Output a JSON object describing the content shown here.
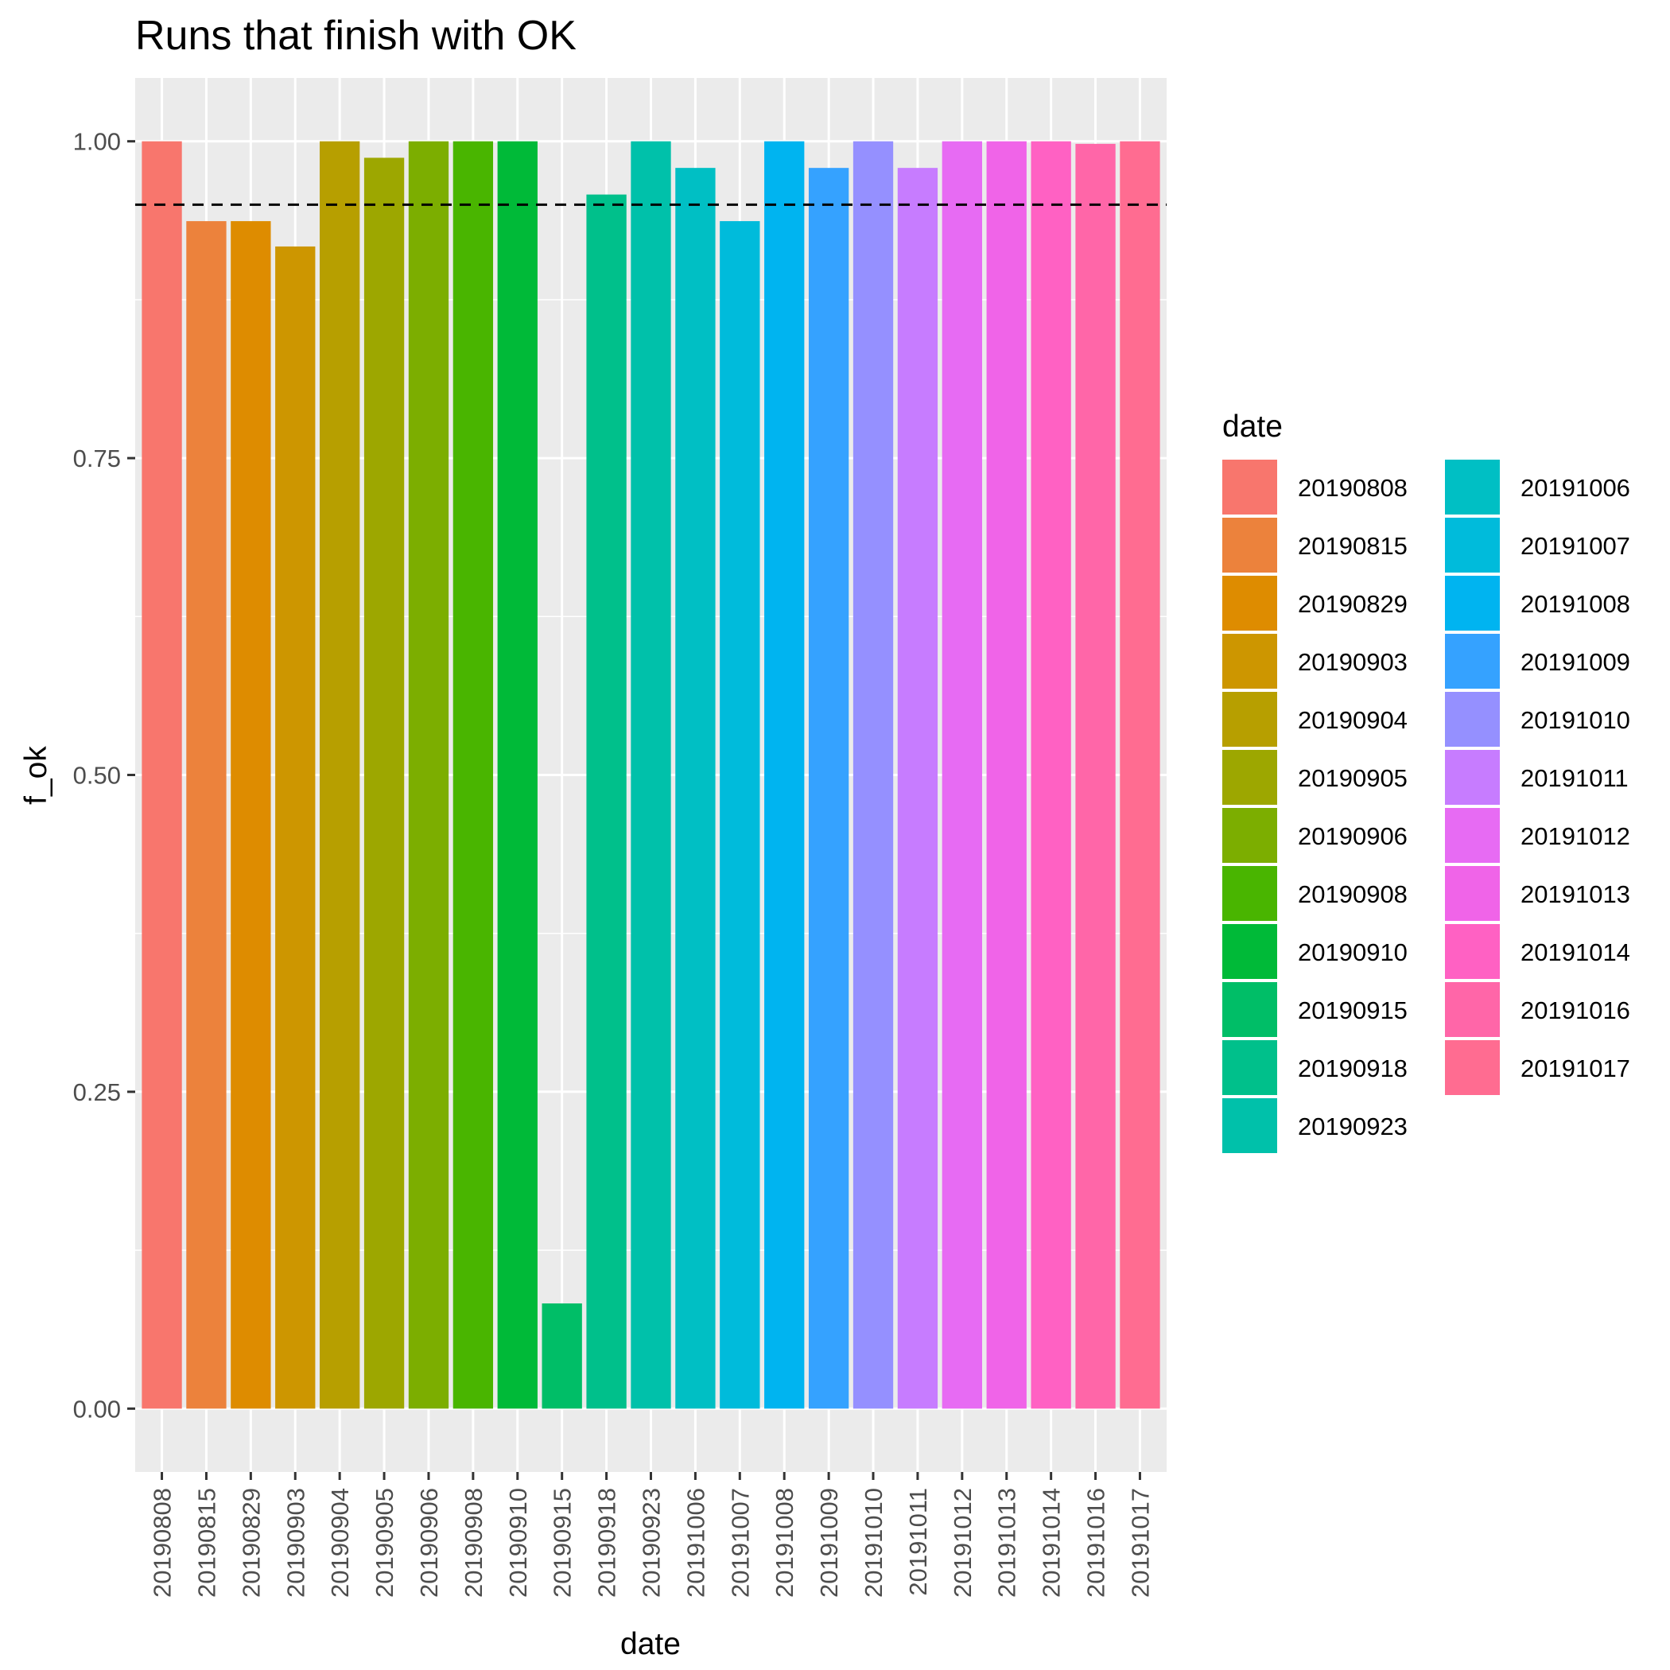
{
  "chart_data": {
    "type": "bar",
    "title": "Runs that finish with OK",
    "xlabel": "date",
    "ylabel": "f_ok",
    "ylim": [
      -0.05,
      1.05
    ],
    "yticks": [
      "0.00",
      "0.25",
      "0.50",
      "0.75",
      "1.00"
    ],
    "yticks_values": [
      0,
      0.25,
      0.5,
      0.75,
      1.0
    ],
    "reference_line": {
      "y": 0.95,
      "style": "dashed",
      "color": "#000000"
    },
    "grid": true,
    "legend_title": "date",
    "legend_position": "right",
    "categories": [
      "20190808",
      "20190815",
      "20190829",
      "20190903",
      "20190904",
      "20190905",
      "20190906",
      "20190908",
      "20190910",
      "20190915",
      "20190918",
      "20190923",
      "20191006",
      "20191007",
      "20191008",
      "20191009",
      "20191010",
      "20191011",
      "20191012",
      "20191013",
      "20191014",
      "20191016",
      "20191017"
    ],
    "values": [
      1.0,
      0.937,
      0.937,
      0.917,
      1.0,
      0.987,
      1.0,
      1.0,
      1.0,
      0.083,
      0.958,
      1.0,
      0.979,
      0.937,
      1.0,
      0.979,
      1.0,
      0.979,
      1.0,
      1.0,
      1.0,
      0.998,
      1.0
    ],
    "colors": [
      "#F8766D",
      "#EC823C",
      "#DE8C00",
      "#CD9600",
      "#B79F00",
      "#9DA700",
      "#7CAE00",
      "#49B500",
      "#00BA38",
      "#00BE67",
      "#00C08B",
      "#00C1AA",
      "#00BFC4",
      "#00BBDB",
      "#00B4F0",
      "#35A2FF",
      "#9590FF",
      "#C77CFF",
      "#E76BF3",
      "#F064E8",
      "#FF61C3",
      "#FF66A8",
      "#FF6C91"
    ]
  }
}
